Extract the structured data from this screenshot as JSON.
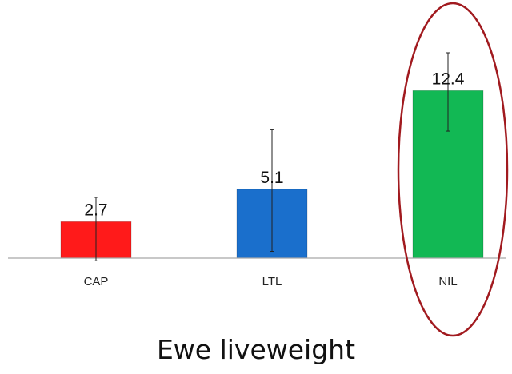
{
  "chart_data": {
    "type": "bar",
    "categories": [
      "CAP",
      "LTL",
      "NIL"
    ],
    "values": [
      2.7,
      5.1,
      12.4
    ],
    "data_labels": [
      "2.7",
      "5.1",
      "12.4"
    ],
    "error_bars": [
      [
        -0.2,
        4.5
      ],
      [
        0.5,
        9.5
      ],
      [
        9.4,
        15.2
      ]
    ],
    "colors": [
      "#ff1a1a",
      "#1a6fcc",
      "#12b854"
    ],
    "highlight": "NIL",
    "highlight_color": "#a11a1f",
    "title": "",
    "xlabel": "",
    "ylabel": "",
    "ylim": [
      0,
      15.2
    ],
    "grid": false,
    "legend": "none"
  },
  "caption": "Ewe liveweight"
}
